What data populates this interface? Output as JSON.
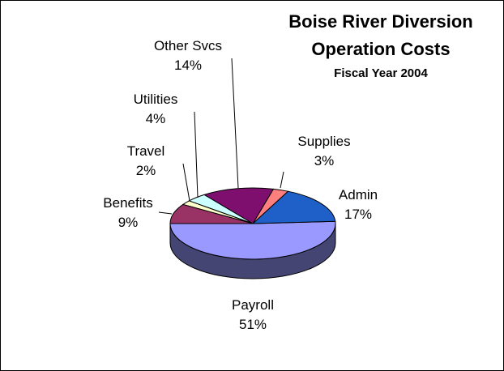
{
  "chart_data": {
    "type": "pie",
    "title": "Boise River Diversion",
    "title_line2": "Operation Costs",
    "subtitle": "Fiscal Year 2004",
    "three_d": true,
    "slices": [
      {
        "name": "Payroll",
        "pct": 51,
        "label": "51%",
        "color": "#9999FF"
      },
      {
        "name": "Admin",
        "pct": 17,
        "label": "17%",
        "color": "#1F5FC8"
      },
      {
        "name": "Supplies",
        "pct": 3,
        "label": "3%",
        "color": "#FF7F7F"
      },
      {
        "name": "Other Svcs",
        "pct": 14,
        "label": "14%",
        "color": "#7F0F6F"
      },
      {
        "name": "Utilities",
        "pct": 4,
        "label": "4%",
        "color": "#CCFFFF"
      },
      {
        "name": "Travel",
        "pct": 2,
        "label": "2%",
        "color": "#FFFFCC"
      },
      {
        "name": "Benefits",
        "pct": 9,
        "label": "9%",
        "color": "#993366"
      }
    ]
  }
}
